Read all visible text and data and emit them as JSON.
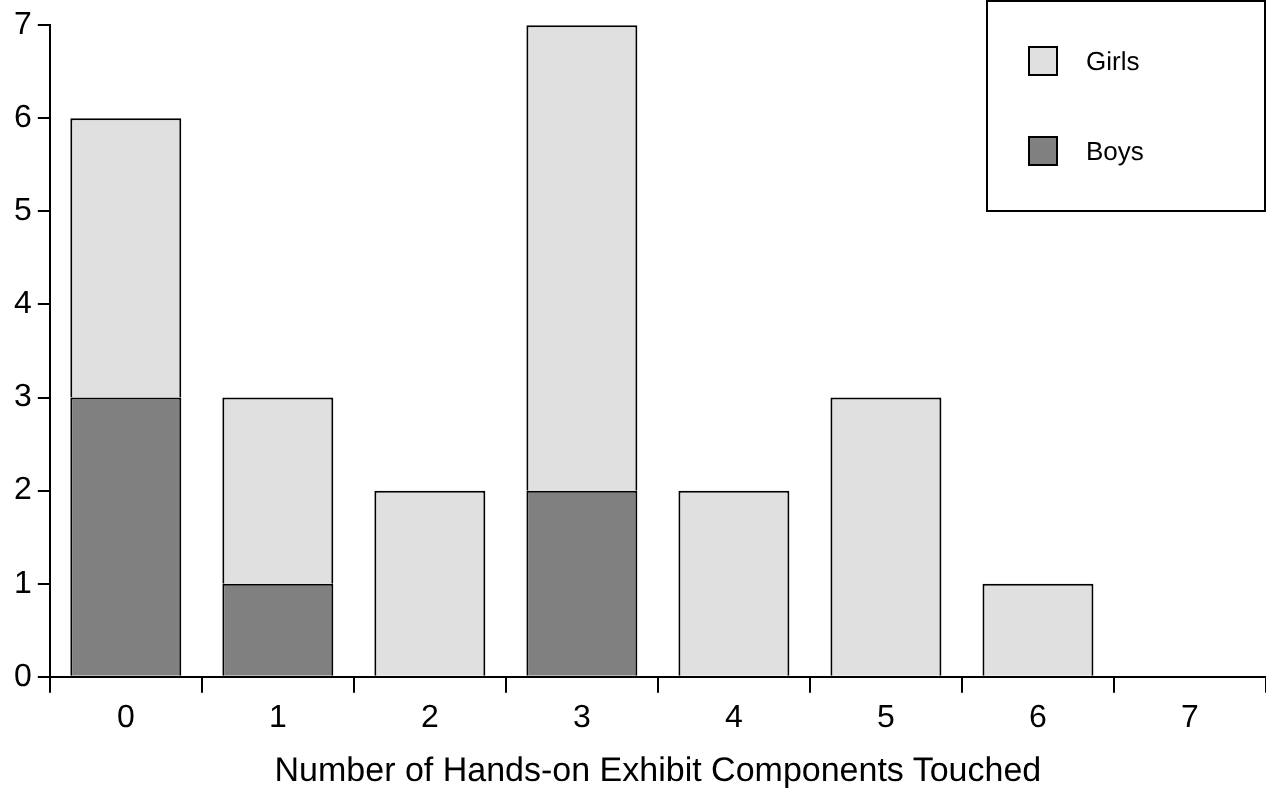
{
  "chart_data": {
    "type": "bar",
    "stacked": true,
    "xlabel": "Number of Hands-on Exhibit Components Touched",
    "categories": [
      "0",
      "1",
      "2",
      "3",
      "4",
      "5",
      "6",
      "7"
    ],
    "series": [
      {
        "name": "Boys",
        "color": "#808080",
        "values": [
          3,
          1,
          0,
          2,
          0,
          0,
          0,
          0
        ]
      },
      {
        "name": "Girls",
        "color": "#e0e0e0",
        "values": [
          3,
          2,
          2,
          5,
          2,
          3,
          1,
          0
        ]
      }
    ],
    "ylim": [
      0,
      7
    ],
    "yticks": [
      0,
      1,
      2,
      3,
      4,
      5,
      6,
      7
    ],
    "grid": false,
    "legend": "top right"
  }
}
